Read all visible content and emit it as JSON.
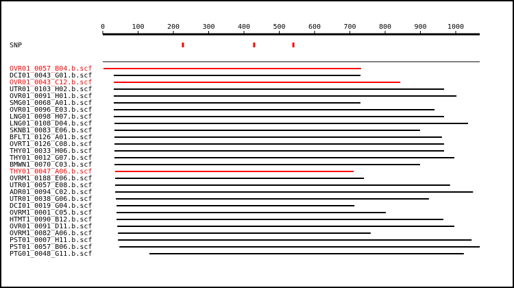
{
  "chart_data": {
    "type": "interval",
    "xlim": [
      0,
      1068
    ],
    "xticks": [
      0,
      100,
      200,
      300,
      400,
      500,
      600,
      700,
      800,
      900,
      1000
    ],
    "snp_label": "SNP",
    "snp_color": "#ff0000",
    "snps": [
      227,
      429,
      540
    ],
    "reads": [
      {
        "name": "OVR01_0057_B04.b.scf",
        "start": 2,
        "end": 732,
        "color": "#ff0000"
      },
      {
        "name": "DCI01_0043_G01.b.scf",
        "start": 31,
        "end": 730,
        "color": "#000000"
      },
      {
        "name": "OVR01_0043_C12.b.scf",
        "start": 31,
        "end": 843,
        "color": "#ff0000"
      },
      {
        "name": "UTR01_0103_H02.b.scf",
        "start": 31,
        "end": 967,
        "color": "#000000"
      },
      {
        "name": "OVR01_0091_H01.b.scf",
        "start": 31,
        "end": 1002,
        "color": "#000000"
      },
      {
        "name": "SMG01_0068_A01.b.scf",
        "start": 31,
        "end": 730,
        "color": "#000000"
      },
      {
        "name": "OVR01_0096_E03.b.scf",
        "start": 31,
        "end": 940,
        "color": "#000000"
      },
      {
        "name": "LNG01_0098_H07.b.scf",
        "start": 31,
        "end": 967,
        "color": "#000000"
      },
      {
        "name": "LNG01_0108_D04.b.scf",
        "start": 33,
        "end": 1035,
        "color": "#000000"
      },
      {
        "name": "SKNB1_0083_E06.b.scf",
        "start": 33,
        "end": 899,
        "color": "#000000"
      },
      {
        "name": "BFLT1_0126_A01.b.scf",
        "start": 33,
        "end": 961,
        "color": "#000000"
      },
      {
        "name": "OVRT1_0126_C08.b.scf",
        "start": 33,
        "end": 967,
        "color": "#000000"
      },
      {
        "name": "THY01_0033_H06.b.scf",
        "start": 33,
        "end": 967,
        "color": "#000000"
      },
      {
        "name": "THY01_0012_G07.b.scf",
        "start": 33,
        "end": 996,
        "color": "#000000"
      },
      {
        "name": "BMWN1_0070_C03.b.scf",
        "start": 33,
        "end": 899,
        "color": "#000000"
      },
      {
        "name": "THY01_0047_A06.b.scf",
        "start": 35,
        "end": 711,
        "color": "#ff0000"
      },
      {
        "name": "OVRM1_0188_E06.b.scf",
        "start": 35,
        "end": 740,
        "color": "#000000"
      },
      {
        "name": "UTR01_0057_E08.b.scf",
        "start": 35,
        "end": 984,
        "color": "#000000"
      },
      {
        "name": "ADR01_0094_C02.b.scf",
        "start": 35,
        "end": 1049,
        "color": "#000000"
      },
      {
        "name": "UTR01_0038_G06.b.scf",
        "start": 37,
        "end": 924,
        "color": "#000000"
      },
      {
        "name": "DCI01_0019_G04.b.scf",
        "start": 39,
        "end": 713,
        "color": "#000000"
      },
      {
        "name": "OVRM1_0001_C05.b.scf",
        "start": 39,
        "end": 802,
        "color": "#000000"
      },
      {
        "name": "HTMT1_0090_B12.b.scf",
        "start": 39,
        "end": 965,
        "color": "#000000"
      },
      {
        "name": "OVR01_0091_D11.b.scf",
        "start": 41,
        "end": 996,
        "color": "#000000"
      },
      {
        "name": "OVRM1_0082_A06.b.scf",
        "start": 43,
        "end": 759,
        "color": "#000000"
      },
      {
        "name": "PST01_0007_H11.b.scf",
        "start": 43,
        "end": 1045,
        "color": "#000000"
      },
      {
        "name": "PST01_0057_B06.b.scf",
        "start": 47,
        "end": 1068,
        "color": "#000000"
      },
      {
        "name": "PTG01_0048_G11.b.scf",
        "start": 132,
        "end": 1023,
        "color": "#000000"
      }
    ]
  }
}
